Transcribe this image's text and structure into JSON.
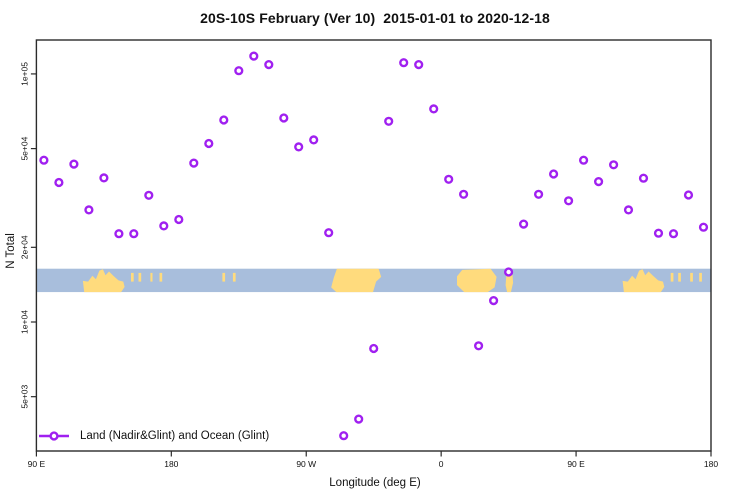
{
  "title": "20S-10S February (Ver 10)  2015-01-01 to 2020-12-18",
  "legend": {
    "label": "Land (Nadir&Glint) and Ocean (Glint)"
  },
  "colors": {
    "marker": "#A020F0",
    "marker_fill": "#ffffff",
    "ocean": "#A8BEDC",
    "land": "#FFDB7D",
    "axis": "#2b2b2b"
  },
  "chart_data": {
    "type": "scatter",
    "title": "20S-10S February (Ver 10)  2015-01-01 to 2020-12-18",
    "xlabel": "Longitude (deg E)",
    "ylabel": "N Total",
    "x_scale": "linear",
    "y_scale": "log10",
    "xlim": [
      90,
      540
    ],
    "ylim": [
      3020,
      137000
    ],
    "grid": false,
    "legend_position": "bottom-left",
    "x_axis": {
      "ticks": [
        90,
        180,
        270,
        360,
        450,
        540
      ],
      "tick_labels": [
        "90 E",
        "180",
        "90 W",
        "0",
        "90 E",
        "180"
      ]
    },
    "y_axis": {
      "ticks": [
        5000,
        10000,
        20000,
        50000,
        100000
      ],
      "tick_labels": [
        "5e+03",
        "1e+04",
        "2e+04",
        "5e+04",
        "1e+05"
      ]
    },
    "series": [
      {
        "name": "Land (Nadir&Glint) and Ocean (Glint)",
        "marker": "open-circle",
        "points": [
          {
            "lon": 95,
            "n": 44900
          },
          {
            "lon": 105,
            "n": 36500
          },
          {
            "lon": 115,
            "n": 43300
          },
          {
            "lon": 125,
            "n": 28300
          },
          {
            "lon": 135,
            "n": 38100
          },
          {
            "lon": 145,
            "n": 22700
          },
          {
            "lon": 155,
            "n": 22700
          },
          {
            "lon": 165,
            "n": 32400
          },
          {
            "lon": 175,
            "n": 24400
          },
          {
            "lon": 185,
            "n": 25900
          },
          {
            "lon": 195,
            "n": 43700
          },
          {
            "lon": 205,
            "n": 52400
          },
          {
            "lon": 215,
            "n": 65200
          },
          {
            "lon": 225,
            "n": 103000
          },
          {
            "lon": 235,
            "n": 118000
          },
          {
            "lon": 245,
            "n": 109000
          },
          {
            "lon": 255,
            "n": 66400
          },
          {
            "lon": 265,
            "n": 50800
          },
          {
            "lon": 275,
            "n": 54200
          },
          {
            "lon": 285,
            "n": 22900
          },
          {
            "lon": 295,
            "n": 3480
          },
          {
            "lon": 305,
            "n": 4060
          },
          {
            "lon": 315,
            "n": 7820
          },
          {
            "lon": 325,
            "n": 64400
          },
          {
            "lon": 335,
            "n": 111000
          },
          {
            "lon": 345,
            "n": 109000
          },
          {
            "lon": 355,
            "n": 72300
          },
          {
            "lon": 365,
            "n": 37600
          },
          {
            "lon": 375,
            "n": 32700
          },
          {
            "lon": 385,
            "n": 8020
          },
          {
            "lon": 395,
            "n": 12200
          },
          {
            "lon": 405,
            "n": 15900
          },
          {
            "lon": 415,
            "n": 24800
          },
          {
            "lon": 425,
            "n": 32700
          },
          {
            "lon": 435,
            "n": 39500
          },
          {
            "lon": 445,
            "n": 30800
          },
          {
            "lon": 455,
            "n": 44900
          },
          {
            "lon": 465,
            "n": 36800
          },
          {
            "lon": 475,
            "n": 43000
          },
          {
            "lon": 485,
            "n": 28300
          },
          {
            "lon": 495,
            "n": 38000
          },
          {
            "lon": 505,
            "n": 22800
          },
          {
            "lon": 515,
            "n": 22700
          },
          {
            "lon": 525,
            "n": 32500
          },
          {
            "lon": 535,
            "n": 24100
          }
        ]
      }
    ],
    "map_band": {
      "description": "World-map strip of the 20S-10S latitude band (ocean blue, land yellow)",
      "n_range": [
        13200,
        16400
      ],
      "land_segments": [
        {
          "name": "australia",
          "from": 121,
          "to": 150,
          "profile": "australia"
        },
        {
          "name": "island",
          "from": 153,
          "to": 155,
          "profile": "speck"
        },
        {
          "name": "island",
          "from": 158,
          "to": 160,
          "profile": "speck"
        },
        {
          "name": "island",
          "from": 166,
          "to": 167.5,
          "profile": "speck"
        },
        {
          "name": "island",
          "from": 172,
          "to": 174,
          "profile": "speck"
        },
        {
          "name": "island",
          "from": 214,
          "to": 216,
          "profile": "speck"
        },
        {
          "name": "island",
          "from": 221,
          "to": 223,
          "profile": "speck"
        },
        {
          "name": "south-america",
          "from": 286,
          "to": 320,
          "profile": "south-america"
        },
        {
          "name": "africa",
          "from": 370,
          "to": 397,
          "profile": "africa"
        },
        {
          "name": "madagascar",
          "from": 403,
          "to": 408,
          "profile": "madagascar"
        },
        {
          "name": "australia",
          "from": 481,
          "to": 510,
          "profile": "australia"
        },
        {
          "name": "island",
          "from": 513,
          "to": 515,
          "profile": "speck"
        },
        {
          "name": "island",
          "from": 518,
          "to": 520,
          "profile": "speck"
        },
        {
          "name": "island",
          "from": 526,
          "to": 528,
          "profile": "speck"
        },
        {
          "name": "island",
          "from": 532,
          "to": 534,
          "profile": "speck"
        }
      ]
    }
  }
}
